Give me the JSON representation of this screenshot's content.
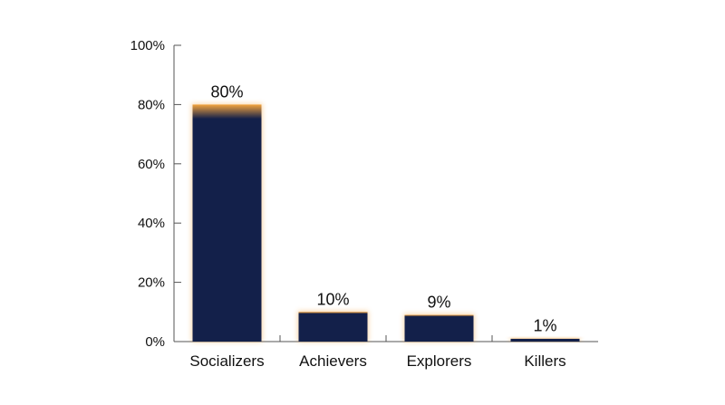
{
  "colors": {
    "bar": "#13204a",
    "glow": "#f3a33c",
    "axis": "#555555",
    "text": "#111111",
    "background": "#ffffff"
  },
  "chart_data": {
    "type": "bar",
    "categories": [
      "Socializers",
      "Achievers",
      "Explorers",
      "Killers"
    ],
    "values": [
      80,
      10,
      9,
      1
    ],
    "data_labels": [
      "80%",
      "10%",
      "9%",
      "1%"
    ],
    "title": "",
    "xlabel": "",
    "ylabel": "",
    "ylim": [
      0,
      100
    ],
    "yticks": [
      0,
      20,
      40,
      60,
      80,
      100
    ],
    "ytick_labels": [
      "0%",
      "20%",
      "40%",
      "60%",
      "80%",
      "100%"
    ],
    "grid": false,
    "legend": "none"
  }
}
